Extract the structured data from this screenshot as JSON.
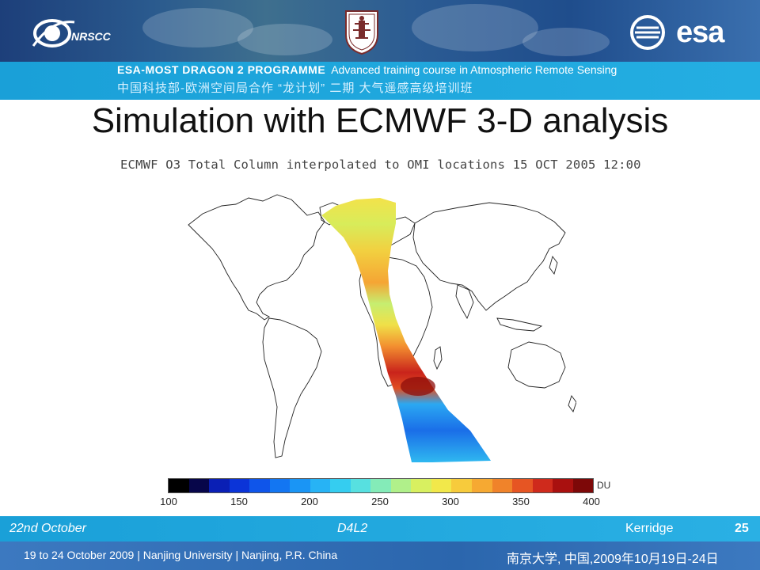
{
  "header": {
    "nrscc_logo_text": "NRSCC",
    "esa_logo_text": "esa",
    "programme_title": "ESA-MOST DRAGON 2 PROGRAMME",
    "programme_subtitle": "Advanced training course in Atmospheric Remote Sensing",
    "chinese_banner": "中国科技部-欧洲空间局合作 “龙计划” 二期   大气遥感高级培训班"
  },
  "slide": {
    "title": "Simulation with ECMWF 3-D analysis",
    "figure_caption": "ECMWF O3 Total Column interpolated to OMI locations 15 OCT 2005 12:00"
  },
  "colorbar": {
    "unit": "DU",
    "ticks": [
      "100",
      "150",
      "200",
      "250",
      "300",
      "350",
      "400"
    ],
    "range": [
      100,
      400
    ],
    "colors": [
      "#000000",
      "#07064a",
      "#0a1fb5",
      "#0b34d8",
      "#0f55ea",
      "#1376f2",
      "#1a95f5",
      "#27b3f5",
      "#35cdf0",
      "#57e0e0",
      "#84ebb8",
      "#b0f08a",
      "#d8f060",
      "#f2e84a",
      "#f7cb3c",
      "#f6a932",
      "#f0832a",
      "#e65523",
      "#cf2a1c",
      "#a9100f",
      "#7d0808"
    ]
  },
  "footer": {
    "date": "22nd October",
    "code": "D4L2",
    "author": "Kerridge",
    "page": "25",
    "event": "19 to 24 October 2009 | Nanjing University | Nanjing, P.R. China",
    "event_cn": "南京大学, 中国,2009年10月19日-24日"
  },
  "colors": {
    "banner_blue": "#1aa0d8",
    "header_navy": "#1d3f7a",
    "footer_navy": "#2b66ad"
  }
}
